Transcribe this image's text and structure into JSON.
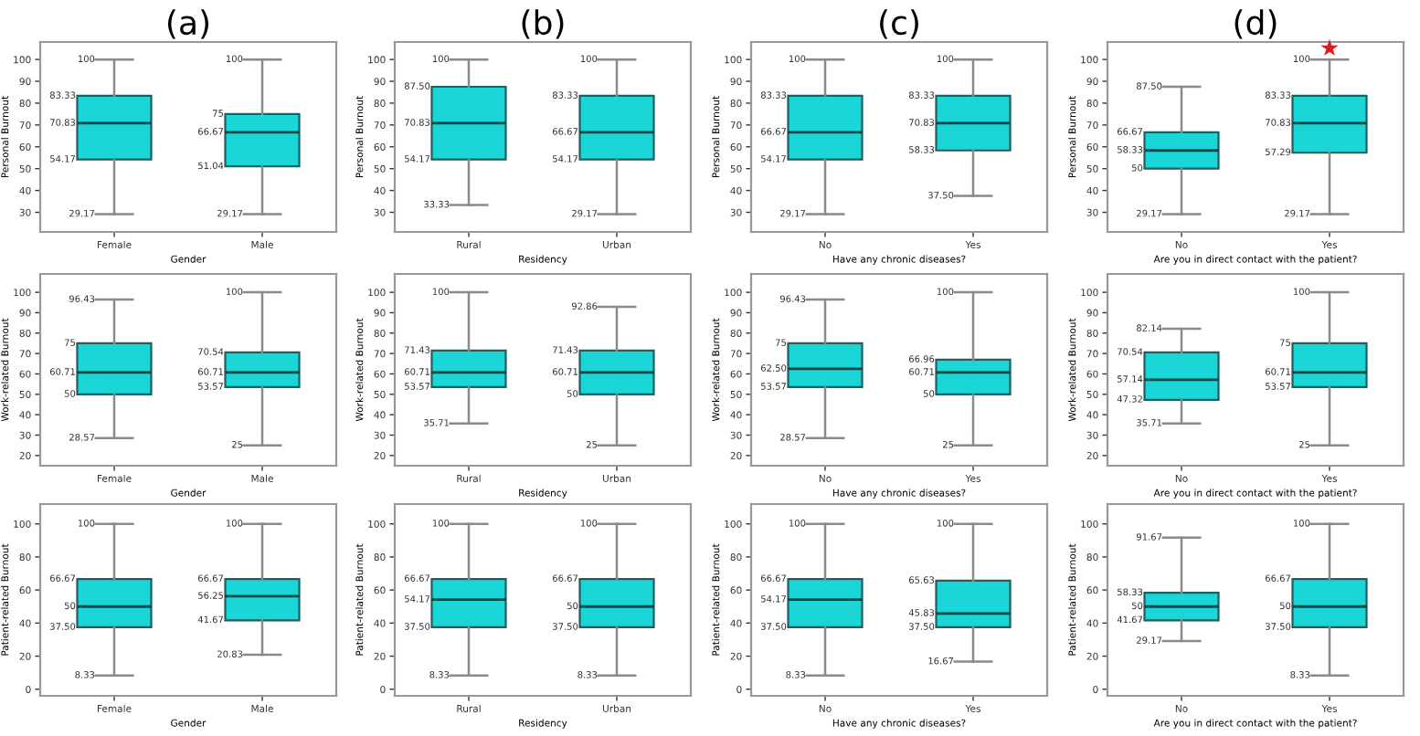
{
  "chart_data": [
    {
      "type": "box",
      "title": "(a)",
      "xlabel": "Gender",
      "ylabel": "Personal Burnout",
      "categories": [
        "Female",
        "Male"
      ],
      "color": "#1ad6d6",
      "ylim": [
        21,
        108
      ],
      "yticks": [
        30,
        40,
        50,
        60,
        70,
        80,
        90,
        100
      ],
      "data_labels": true,
      "boxes": [
        {
          "low": 29.17,
          "q1": 54.17,
          "median": 70.83,
          "q3": 83.33,
          "high": 100
        },
        {
          "low": 29.17,
          "q1": 51.04,
          "median": 66.67,
          "q3": 75,
          "high": 100
        }
      ],
      "annotations": [
        "29.17",
        "54.17",
        "70.83",
        "83.33",
        "100",
        "29.17",
        "51.04",
        "66.67",
        "75",
        "100"
      ]
    },
    {
      "type": "box",
      "title": "(b)",
      "xlabel": "Residency",
      "ylabel": "Personal Burnout",
      "categories": [
        "Rural",
        "Urban"
      ],
      "color": "#1ad6d6",
      "ylim": [
        21,
        108
      ],
      "yticks": [
        30,
        40,
        50,
        60,
        70,
        80,
        90,
        100
      ],
      "data_labels": true,
      "boxes": [
        {
          "low": 33.33,
          "q1": 54.17,
          "median": 70.83,
          "q3": 87.5,
          "high": 100
        },
        {
          "low": 29.17,
          "q1": 54.17,
          "median": 66.67,
          "q3": 83.33,
          "high": 100
        }
      ],
      "annotations": [
        "33.33",
        "54.17",
        "70.83",
        "87.50",
        "100",
        "29.17",
        "54.17",
        "66.67",
        "83.33",
        "100"
      ]
    },
    {
      "type": "box",
      "title": "(c)",
      "xlabel": "Have any chronic diseases?",
      "ylabel": "Personal Burnout",
      "categories": [
        "No",
        "Yes"
      ],
      "color": "#1ad6d6",
      "ylim": [
        21,
        108
      ],
      "yticks": [
        30,
        40,
        50,
        60,
        70,
        80,
        90,
        100
      ],
      "data_labels": true,
      "boxes": [
        {
          "low": 29.17,
          "q1": 54.17,
          "median": 66.67,
          "q3": 83.33,
          "high": 100
        },
        {
          "low": 37.5,
          "q1": 58.33,
          "median": 70.83,
          "q3": 83.33,
          "high": 100
        }
      ],
      "annotations": [
        "29.17",
        "54.17",
        "66.67",
        "83.33",
        "100",
        "37.50",
        "58.33",
        "70.83",
        "83.33",
        "100"
      ]
    },
    {
      "type": "box",
      "title": "(d)",
      "xlabel": "Are you in direct contact with the patient?",
      "ylabel": "Personal Burnout",
      "categories": [
        "No",
        "Yes"
      ],
      "color": "#1ad6d6",
      "ylim": [
        21,
        108
      ],
      "yticks": [
        30,
        40,
        50,
        60,
        70,
        80,
        90,
        100
      ],
      "data_labels": true,
      "boxes": [
        {
          "low": 29.17,
          "q1": 50,
          "median": 58.33,
          "q3": 66.67,
          "high": 87.5
        },
        {
          "low": 29.17,
          "q1": 57.29,
          "median": 70.83,
          "q3": 83.33,
          "high": 100
        }
      ],
      "annotations": [
        "29.17",
        "50",
        "58.33",
        "66.67",
        "87.50",
        "29.17",
        "57.29",
        "70.83",
        "83.33",
        "100",
        {
          "text": "★",
          "x": "Yes",
          "y": 100
        }
      ]
    },
    {
      "type": "box",
      "xlabel": "Gender",
      "ylabel": "Work-related Burnout",
      "categories": [
        "Female",
        "Male"
      ],
      "color": "#1ad6d6",
      "ylim": [
        15,
        109
      ],
      "yticks": [
        20,
        30,
        40,
        50,
        60,
        70,
        80,
        90,
        100
      ],
      "data_labels": true,
      "boxes": [
        {
          "low": 28.57,
          "q1": 50,
          "median": 60.71,
          "q3": 75,
          "high": 96.43
        },
        {
          "low": 25,
          "q1": 53.57,
          "median": 60.71,
          "q3": 70.54,
          "high": 100
        }
      ],
      "annotations": [
        "28.57",
        "50",
        "60.71",
        "75",
        "96.43",
        "25",
        "53.57",
        "60.71",
        "70.54",
        "100"
      ]
    },
    {
      "type": "box",
      "xlabel": "Residency",
      "ylabel": "Work-related Burnout",
      "categories": [
        "Rural",
        "Urban"
      ],
      "color": "#1ad6d6",
      "ylim": [
        15,
        109
      ],
      "yticks": [
        20,
        30,
        40,
        50,
        60,
        70,
        80,
        90,
        100
      ],
      "data_labels": true,
      "boxes": [
        {
          "low": 35.71,
          "q1": 53.57,
          "median": 60.71,
          "q3": 71.43,
          "high": 100
        },
        {
          "low": 25,
          "q1": 50,
          "median": 60.71,
          "q3": 71.43,
          "high": 92.86
        }
      ],
      "annotations": [
        "35.71",
        "53.57",
        "60.71",
        "71.43",
        "100",
        "25",
        "50",
        "60.71",
        "71.43",
        "92.86"
      ]
    },
    {
      "type": "box",
      "xlabel": "Have any chronic diseases?",
      "ylabel": "Work-related Burnout",
      "categories": [
        "No",
        "Yes"
      ],
      "color": "#1ad6d6",
      "ylim": [
        15,
        109
      ],
      "yticks": [
        20,
        30,
        40,
        50,
        60,
        70,
        80,
        90,
        100
      ],
      "data_labels": true,
      "boxes": [
        {
          "low": 28.57,
          "q1": 53.57,
          "median": 62.5,
          "q3": 75,
          "high": 96.43
        },
        {
          "low": 25,
          "q1": 50,
          "median": 60.71,
          "q3": 66.96,
          "high": 100
        }
      ],
      "annotations": [
        "28.57",
        "53.57",
        "62.50",
        "75",
        "96.43",
        "25",
        "50",
        "60.71",
        "66.96",
        "100"
      ]
    },
    {
      "type": "box",
      "xlabel": "Are you in direct contact with the patient?",
      "ylabel": "Work-related Burnout",
      "categories": [
        "No",
        "Yes"
      ],
      "color": "#1ad6d6",
      "ylim": [
        15,
        109
      ],
      "yticks": [
        20,
        30,
        40,
        50,
        60,
        70,
        80,
        90,
        100
      ],
      "data_labels": true,
      "boxes": [
        {
          "low": 35.71,
          "q1": 47.32,
          "median": 57.14,
          "q3": 70.54,
          "high": 82.14
        },
        {
          "low": 25,
          "q1": 53.57,
          "median": 60.71,
          "q3": 75,
          "high": 100
        }
      ],
      "annotations": [
        "35.71",
        "47.32",
        "57.14",
        "70.54",
        "82.14",
        "25",
        "53.57",
        "60.71",
        "75",
        "100"
      ]
    },
    {
      "type": "box",
      "xlabel": "Gender",
      "ylabel": "Patient-related Burnout",
      "categories": [
        "Female",
        "Male"
      ],
      "color": "#1ad6d6",
      "ylim": [
        -4,
        112
      ],
      "yticks": [
        0,
        20,
        40,
        60,
        80,
        100
      ],
      "data_labels": true,
      "boxes": [
        {
          "low": 8.33,
          "q1": 37.5,
          "median": 50,
          "q3": 66.67,
          "high": 100
        },
        {
          "low": 20.83,
          "q1": 41.67,
          "median": 56.25,
          "q3": 66.67,
          "high": 100
        }
      ],
      "annotations": [
        "8.33",
        "37.50",
        "50",
        "66.67",
        "100",
        "20.83",
        "41.67",
        "56.25",
        "66.67",
        "100"
      ]
    },
    {
      "type": "box",
      "xlabel": "Residency",
      "ylabel": "Patient-related Burnout",
      "categories": [
        "Rural",
        "Urban"
      ],
      "color": "#1ad6d6",
      "ylim": [
        -4,
        112
      ],
      "yticks": [
        0,
        20,
        40,
        60,
        80,
        100
      ],
      "data_labels": true,
      "boxes": [
        {
          "low": 8.33,
          "q1": 37.5,
          "median": 54.17,
          "q3": 66.67,
          "high": 100
        },
        {
          "low": 8.33,
          "q1": 37.5,
          "median": 50,
          "q3": 66.67,
          "high": 100
        }
      ],
      "annotations": [
        "8.33",
        "37.50",
        "54.17",
        "66.67",
        "100",
        "8.33",
        "37.50",
        "50",
        "66.67",
        "100"
      ]
    },
    {
      "type": "box",
      "xlabel": "Have any chronic diseases?",
      "ylabel": "Patient-related Burnout",
      "categories": [
        "No",
        "Yes"
      ],
      "color": "#1ad6d6",
      "ylim": [
        -4,
        112
      ],
      "yticks": [
        0,
        20,
        40,
        60,
        80,
        100
      ],
      "data_labels": true,
      "boxes": [
        {
          "low": 8.33,
          "q1": 37.5,
          "median": 54.17,
          "q3": 66.67,
          "high": 100
        },
        {
          "low": 16.67,
          "q1": 37.5,
          "median": 45.83,
          "q3": 65.63,
          "high": 100
        }
      ],
      "annotations": [
        "8.33",
        "37.50",
        "54.17",
        "66.67",
        "100",
        "16.67",
        "37.50",
        "45.83",
        "65.63",
        "100"
      ]
    },
    {
      "type": "box",
      "xlabel": "Are you in direct contact with the patient?",
      "ylabel": "Patient-related Burnout",
      "categories": [
        "No",
        "Yes"
      ],
      "color": "#1ad6d6",
      "ylim": [
        -4,
        112
      ],
      "yticks": [
        0,
        20,
        40,
        60,
        80,
        100
      ],
      "data_labels": true,
      "boxes": [
        {
          "low": 29.17,
          "q1": 41.67,
          "median": 50,
          "q3": 58.33,
          "high": 91.67
        },
        {
          "low": 8.33,
          "q1": 37.5,
          "median": 50,
          "q3": 66.67,
          "high": 100
        }
      ],
      "annotations": [
        "29.17",
        "41.67",
        "50",
        "58.33",
        "91.67",
        "8.33",
        "37.50",
        "50",
        "66.67",
        "100"
      ]
    }
  ]
}
